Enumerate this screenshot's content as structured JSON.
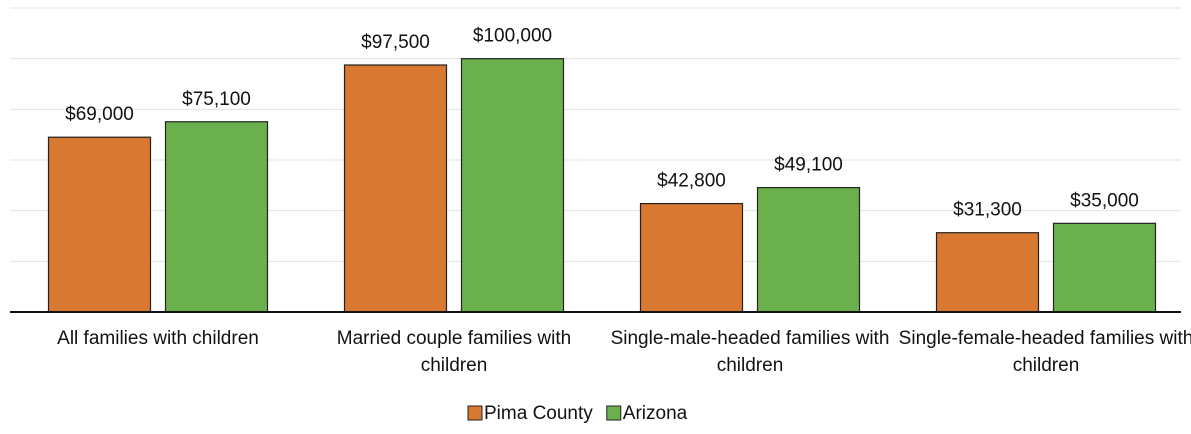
{
  "chart_data": {
    "type": "bar",
    "categories": [
      "All families with children",
      "Married couple families with children",
      "Single-male-headed families with children",
      "Single-female-headed families with children"
    ],
    "series": [
      {
        "name": "Pima County",
        "color": "#d97830",
        "values": [
          69000,
          97500,
          42800,
          31300
        ],
        "value_labels": [
          "$69,000",
          "$97,500",
          "$42,800",
          "$31,300"
        ]
      },
      {
        "name": "Arizona",
        "color": "#6ab04c",
        "values": [
          75100,
          100000,
          49100,
          35000
        ],
        "value_labels": [
          "$75,100",
          "$100,000",
          "$49,100",
          "$35,000"
        ]
      }
    ],
    "ylim": [
      0,
      120000
    ],
    "yticks": [
      0,
      20000,
      40000,
      60000,
      80000,
      100000,
      120000
    ],
    "grid": true,
    "legend": "bottom"
  }
}
